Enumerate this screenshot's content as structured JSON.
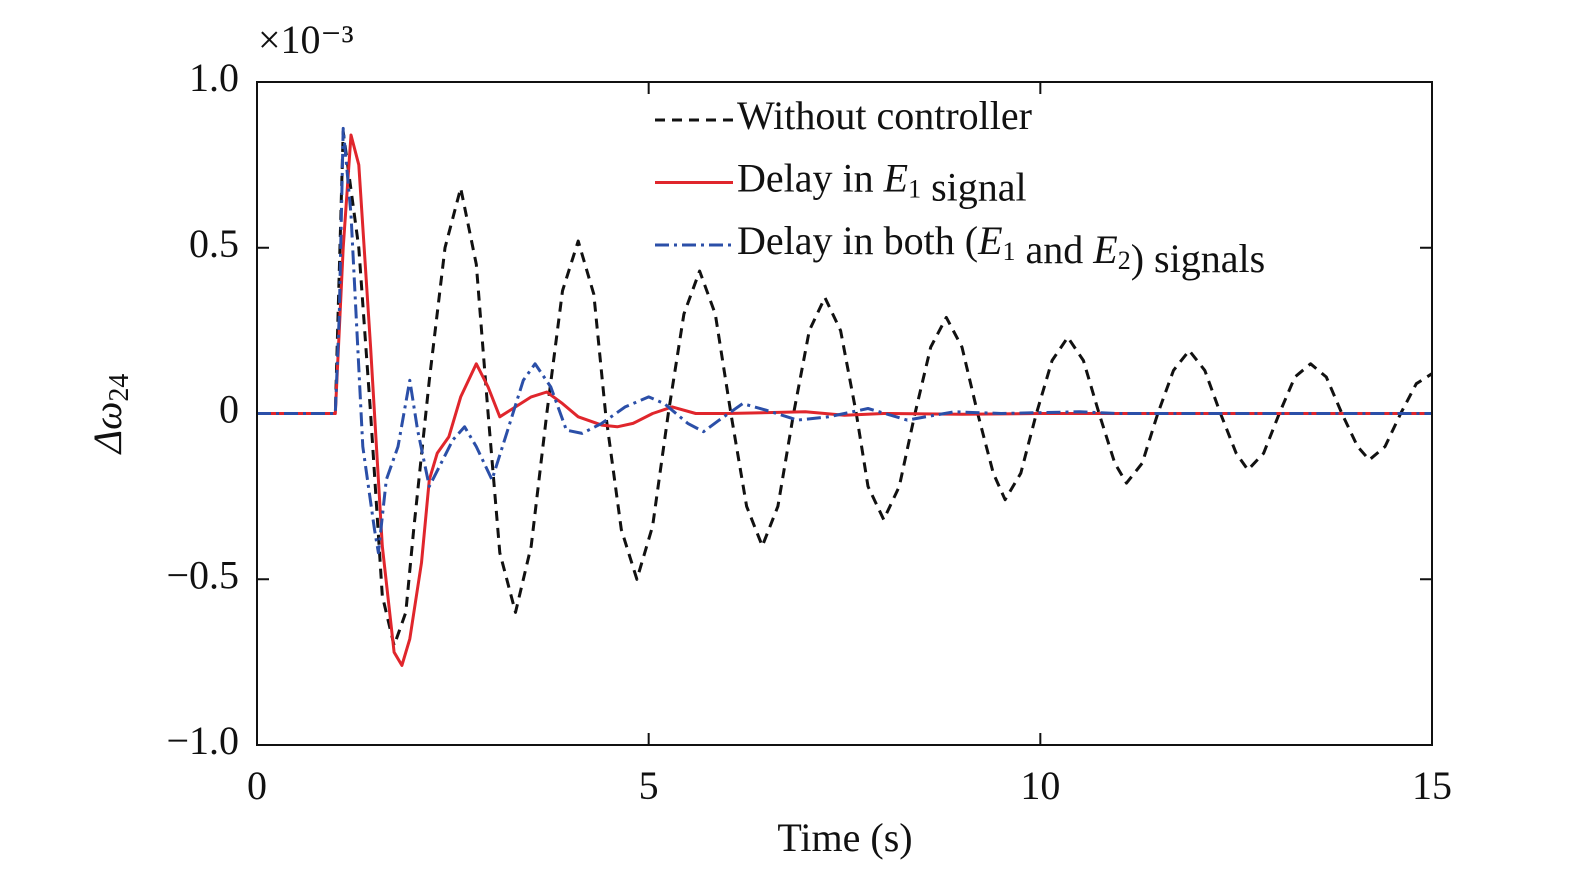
{
  "chart_data": {
    "type": "line",
    "x_label": "Time (s)",
    "y_label": {
      "text": "Δω",
      "subscript": "24"
    },
    "y_multiplier": "×10⁻³",
    "xlim": [
      0,
      15
    ],
    "xticks": [
      0,
      5,
      10,
      15
    ],
    "ylim": [
      -1,
      1
    ],
    "yticks": [
      {
        "value": -1,
        "label": "−1.0"
      },
      {
        "value": -0.5,
        "label": "−0.5"
      },
      0,
      0.5,
      {
        "value": 1,
        "label": "1.0"
      }
    ],
    "grid": false,
    "legend": "upper right",
    "series": [
      {
        "name": "Without controller",
        "color": "#111111",
        "dash": "10,7",
        "x": [
          0,
          1.0,
          1.1,
          1.3,
          1.45,
          1.6,
          1.75,
          1.9,
          2.0,
          2.2,
          2.4,
          2.6,
          2.8,
          2.95,
          3.1,
          3.3,
          3.5,
          3.7,
          3.9,
          4.1,
          4.3,
          4.45,
          4.65,
          4.85,
          5.05,
          5.25,
          5.45,
          5.65,
          5.85,
          6.05,
          6.25,
          6.45,
          6.65,
          6.85,
          7.05,
          7.25,
          7.45,
          7.65,
          7.8,
          8.0,
          8.2,
          8.4,
          8.6,
          8.8,
          9.0,
          9.2,
          9.4,
          9.55,
          9.75,
          9.95,
          10.15,
          10.35,
          10.55,
          10.75,
          10.95,
          11.1,
          11.3,
          11.5,
          11.7,
          11.9,
          12.1,
          12.3,
          12.5,
          12.65,
          12.85,
          13.05,
          13.25,
          13.45,
          13.65,
          13.85,
          14.05,
          14.2,
          14.4,
          14.6,
          14.8,
          15
        ],
        "values": [
          0,
          0,
          0.85,
          0.5,
          0,
          -0.55,
          -0.7,
          -0.6,
          -0.35,
          0.1,
          0.5,
          0.68,
          0.45,
          0,
          -0.42,
          -0.6,
          -0.4,
          0,
          0.37,
          0.52,
          0.36,
          0,
          -0.35,
          -0.5,
          -0.34,
          0,
          0.3,
          0.43,
          0.3,
          0,
          -0.28,
          -0.4,
          -0.28,
          0,
          0.25,
          0.35,
          0.25,
          0,
          -0.22,
          -0.32,
          -0.22,
          0,
          0.2,
          0.29,
          0.2,
          0,
          -0.18,
          -0.26,
          -0.18,
          0,
          0.16,
          0.23,
          0.16,
          0,
          -0.15,
          -0.21,
          -0.15,
          0,
          0.13,
          0.19,
          0.13,
          0,
          -0.12,
          -0.17,
          -0.12,
          0,
          0.11,
          0.15,
          0.11,
          0,
          -0.1,
          -0.14,
          -0.1,
          0,
          0.09,
          0.12
        ]
      },
      {
        "name": "Delay in E1 signal",
        "color": "#e0262c",
        "dash": "none",
        "x": [
          0,
          1.0,
          1.1,
          1.2,
          1.3,
          1.45,
          1.6,
          1.75,
          1.85,
          1.95,
          2.1,
          2.2,
          2.3,
          2.45,
          2.6,
          2.8,
          2.95,
          3.1,
          3.3,
          3.5,
          3.7,
          3.9,
          4.1,
          4.4,
          4.6,
          4.8,
          5.05,
          5.3,
          5.6,
          6.0,
          7.0,
          7.5,
          8,
          9,
          10,
          15
        ],
        "values": [
          0,
          0,
          0.5,
          0.84,
          0.75,
          0.2,
          -0.4,
          -0.72,
          -0.76,
          -0.68,
          -0.45,
          -0.2,
          -0.12,
          -0.07,
          0.05,
          0.15,
          0.08,
          -0.01,
          0.02,
          0.05,
          0.065,
          0.03,
          -0.01,
          -0.035,
          -0.04,
          -0.03,
          0,
          0.02,
          0,
          0,
          0.005,
          -0.005,
          0,
          -0.002,
          0,
          0
        ]
      },
      {
        "name": "Delay in both (E1 and E2) signals",
        "color": "#2b4fa8",
        "dash": "14,5,3,5",
        "x": [
          0,
          1.0,
          1.05,
          1.1,
          1.2,
          1.35,
          1.5,
          1.55,
          1.65,
          1.8,
          1.95,
          2.05,
          2.2,
          2.35,
          2.5,
          2.65,
          2.8,
          3.0,
          3.2,
          3.4,
          3.55,
          3.75,
          3.95,
          4.15,
          4.4,
          4.7,
          5.0,
          5.2,
          5.5,
          5.7,
          5.9,
          6.2,
          6.5,
          6.9,
          7.3,
          7.8,
          8.3,
          8.9,
          9.5,
          10.5,
          11,
          15
        ],
        "values": [
          0,
          0,
          0.3,
          0.86,
          0.6,
          -0.1,
          -0.35,
          -0.42,
          -0.2,
          -0.1,
          0.1,
          -0.05,
          -0.22,
          -0.15,
          -0.08,
          -0.04,
          -0.1,
          -0.2,
          -0.05,
          0.1,
          0.15,
          0.08,
          -0.05,
          -0.06,
          -0.03,
          0.02,
          0.05,
          0.03,
          -0.03,
          -0.055,
          -0.02,
          0.03,
          0.01,
          -0.02,
          -0.01,
          0.015,
          -0.02,
          0.005,
          0,
          0.005,
          0,
          0
        ]
      }
    ]
  }
}
